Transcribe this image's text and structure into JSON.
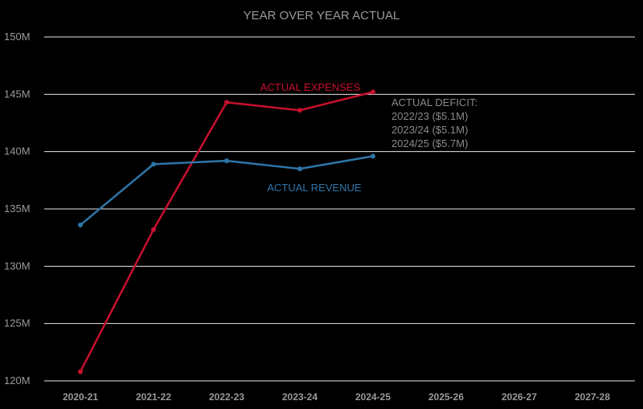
{
  "chart_data": {
    "type": "line",
    "title": "YEAR OVER YEAR ACTUAL",
    "xlabel": "",
    "ylabel": "",
    "categories": [
      "2020-21",
      "2021-22",
      "2022-23",
      "2023-24",
      "2024-25",
      "2025-26",
      "2026-27",
      "2027-28"
    ],
    "ylim": [
      120,
      150
    ],
    "yticks": [
      150,
      145,
      140,
      135,
      130,
      125,
      120
    ],
    "ytick_labels": [
      "150M",
      "145M",
      "140M",
      "135M",
      "130M",
      "125M",
      "120M"
    ],
    "grid": true,
    "series": [
      {
        "name": "ACTUAL EXPENSES",
        "color": "#c8102e",
        "values": [
          120.8,
          133.2,
          144.3,
          143.6,
          145.2,
          null,
          null,
          null
        ]
      },
      {
        "name": "ACTUAL REVENUE",
        "color": "#2e75a8",
        "values": [
          133.6,
          138.9,
          139.2,
          138.5,
          139.6,
          null,
          null,
          null
        ]
      }
    ],
    "annotation": {
      "lines": [
        "ACTUAL DEFICIT:",
        "2022/23 ($5.1M)",
        "2023/24 ($5.1M)",
        "2024/25 ($5.7M)"
      ],
      "color": "#8a8a8a"
    },
    "background": "#000000"
  }
}
